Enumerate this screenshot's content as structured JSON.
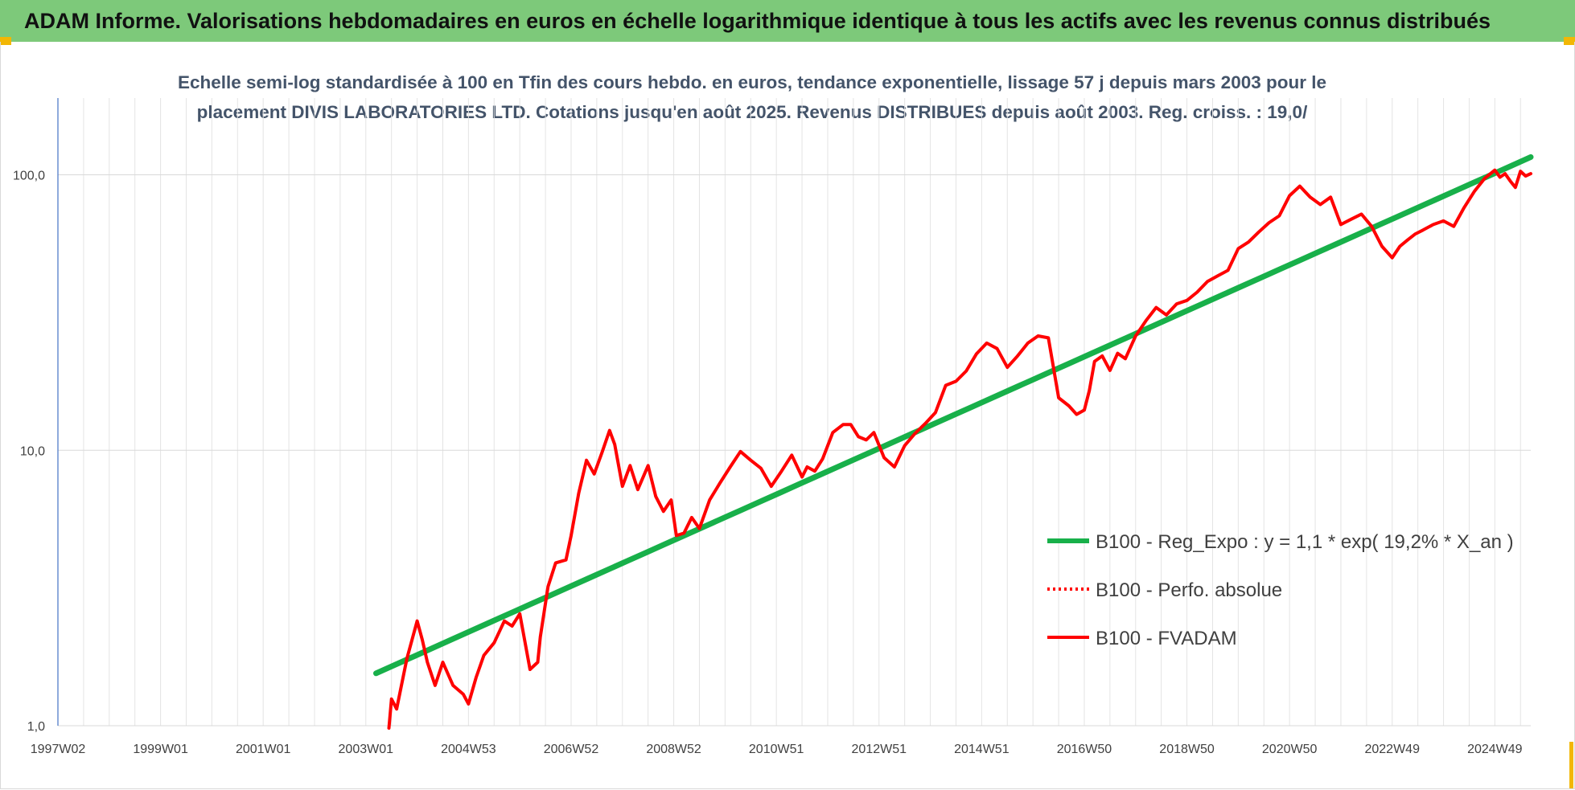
{
  "header": {
    "title": "ADAM Informe. Valorisations hebdomadaires en euros en échelle logarithmique identique à tous les actifs avec les revenus connus distribués"
  },
  "colors": {
    "banner": "#7dc97a",
    "trend": "#18b04a",
    "series": "#ff0000",
    "accent": "#f2b705"
  },
  "chart_data": {
    "type": "line",
    "title": "Echelle semi-log standardisée à 100 en Tfin des cours hebdo. en euros, tendance exponentielle, lissage 57 j depuis mars 2003 pour le placement DIVIS LABORATORIES  LTD. Cotations jusqu'en août 2025.  Revenus DISTRIBUES depuis août 2003. Reg. croiss. : 19,0/",
    "title_lines": [
      "Echelle semi-log standardisée à 100 en Tfin des cours hebdo. en euros, tendance exponentielle, lissage 57 j depuis mars 2003 pour le",
      "placement DIVIS LABORATORIES  LTD. Cotations jusqu'en août 2025.  Revenus DISTRIBUES depuis août 2003. Reg. croiss. : 19,0/"
    ],
    "y_scale": "log",
    "ylim": [
      1,
      190
    ],
    "y_ticks": [
      {
        "value": 1,
        "label": "1,0"
      },
      {
        "value": 10,
        "label": "10,0"
      },
      {
        "value": 100,
        "label": "100,0"
      }
    ],
    "xlim": [
      1997.0,
      2025.7
    ],
    "x_ticks": [
      {
        "value": 1997.0,
        "label": "1997W02"
      },
      {
        "value": 1999.0,
        "label": "1999W01"
      },
      {
        "value": 2001.0,
        "label": "2001W01"
      },
      {
        "value": 2003.0,
        "label": "2003W01"
      },
      {
        "value": 2005.0,
        "label": "2004W53"
      },
      {
        "value": 2007.0,
        "label": "2006W52"
      },
      {
        "value": 2009.0,
        "label": "2008W52"
      },
      {
        "value": 2011.0,
        "label": "2010W51"
      },
      {
        "value": 2013.0,
        "label": "2012W51"
      },
      {
        "value": 2015.0,
        "label": "2014W51"
      },
      {
        "value": 2017.0,
        "label": "2016W50"
      },
      {
        "value": 2019.0,
        "label": "2018W50"
      },
      {
        "value": 2021.0,
        "label": "2020W50"
      },
      {
        "value": 2023.0,
        "label": "2022W49"
      },
      {
        "value": 2025.0,
        "label": "2024W49"
      }
    ],
    "legend_placement": "right",
    "grid": true,
    "series": [
      {
        "name": "B100 - Reg_Expo : y = 1,1 * exp( 19,2% *  X_an )",
        "style": "solid-thick",
        "color": "#18b04a",
        "x": [
          2003.2,
          2025.7
        ],
        "y": [
          1.55,
          116
        ]
      },
      {
        "name": "B100 - Perfo. absolue",
        "style": "dotted",
        "color": "#ff0000",
        "x": [],
        "y": []
      },
      {
        "name": "B100 - FVADAM",
        "style": "solid",
        "color": "#ff0000",
        "x": [
          2003.45,
          2003.5,
          2003.6,
          2003.8,
          2004.0,
          2004.1,
          2004.2,
          2004.35,
          2004.5,
          2004.7,
          2004.9,
          2005.0,
          2005.15,
          2005.3,
          2005.5,
          2005.7,
          2005.85,
          2006.0,
          2006.2,
          2006.35,
          2006.4,
          2006.55,
          2006.7,
          2006.9,
          2007.0,
          2007.15,
          2007.3,
          2007.45,
          2007.6,
          2007.75,
          2007.85,
          2008.0,
          2008.15,
          2008.3,
          2008.5,
          2008.65,
          2008.8,
          2008.95,
          2009.05,
          2009.2,
          2009.35,
          2009.5,
          2009.7,
          2009.9,
          2010.1,
          2010.3,
          2010.5,
          2010.7,
          2010.9,
          2011.1,
          2011.3,
          2011.5,
          2011.6,
          2011.75,
          2011.9,
          2012.1,
          2012.3,
          2012.45,
          2012.6,
          2012.75,
          2012.9,
          2013.1,
          2013.3,
          2013.5,
          2013.7,
          2013.9,
          2014.1,
          2014.3,
          2014.5,
          2014.7,
          2014.9,
          2015.1,
          2015.3,
          2015.5,
          2015.7,
          2015.9,
          2016.1,
          2016.3,
          2016.5,
          2016.7,
          2016.85,
          2017.0,
          2017.1,
          2017.2,
          2017.35,
          2017.5,
          2017.65,
          2017.8,
          2018.0,
          2018.2,
          2018.4,
          2018.6,
          2018.8,
          2019.0,
          2019.2,
          2019.4,
          2019.6,
          2019.8,
          2020.0,
          2020.2,
          2020.4,
          2020.6,
          2020.8,
          2021.0,
          2021.2,
          2021.4,
          2021.6,
          2021.8,
          2022.0,
          2022.2,
          2022.4,
          2022.6,
          2022.8,
          2023.0,
          2023.15,
          2023.3,
          2023.45,
          2023.6,
          2023.8,
          2024.0,
          2024.2,
          2024.4,
          2024.6,
          2024.8,
          2025.0,
          2025.1,
          2025.2,
          2025.3,
          2025.4,
          2025.5,
          2025.6,
          2025.7
        ],
        "y": [
          0.98,
          1.25,
          1.15,
          1.75,
          2.4,
          2.05,
          1.7,
          1.4,
          1.7,
          1.4,
          1.3,
          1.2,
          1.5,
          1.8,
          2.0,
          2.4,
          2.3,
          2.55,
          1.6,
          1.7,
          2.1,
          3.2,
          3.9,
          4.0,
          4.9,
          7.0,
          9.2,
          8.2,
          9.8,
          11.8,
          10.5,
          7.4,
          8.8,
          7.2,
          8.8,
          6.8,
          6.0,
          6.6,
          4.9,
          5.0,
          5.7,
          5.2,
          6.6,
          7.6,
          8.7,
          9.9,
          9.2,
          8.6,
          7.4,
          8.4,
          9.6,
          8.0,
          8.7,
          8.4,
          9.3,
          11.6,
          12.4,
          12.4,
          11.2,
          10.9,
          11.6,
          9.4,
          8.7,
          10.4,
          11.5,
          12.5,
          13.7,
          17.2,
          17.8,
          19.4,
          22.4,
          24.5,
          23.4,
          20.0,
          22.0,
          24.5,
          26.0,
          25.6,
          15.5,
          14.5,
          13.5,
          14.0,
          16.5,
          21.0,
          22.0,
          19.5,
          22.5,
          21.5,
          26.0,
          29.5,
          33.0,
          31.0,
          34.0,
          35.0,
          37.5,
          41.0,
          43.0,
          45.0,
          54.0,
          57.0,
          62.0,
          67.0,
          71.0,
          84.0,
          91.0,
          83.0,
          78.0,
          83.0,
          66.0,
          69.0,
          72.0,
          65.0,
          55.0,
          50.0,
          55.0,
          58.0,
          61.0,
          63.0,
          66.0,
          68.0,
          65.0,
          76.0,
          87.0,
          97.0,
          104.0,
          98.0,
          101.0,
          95.0,
          90.0,
          103.0,
          99.0,
          101.0
        ]
      }
    ]
  }
}
